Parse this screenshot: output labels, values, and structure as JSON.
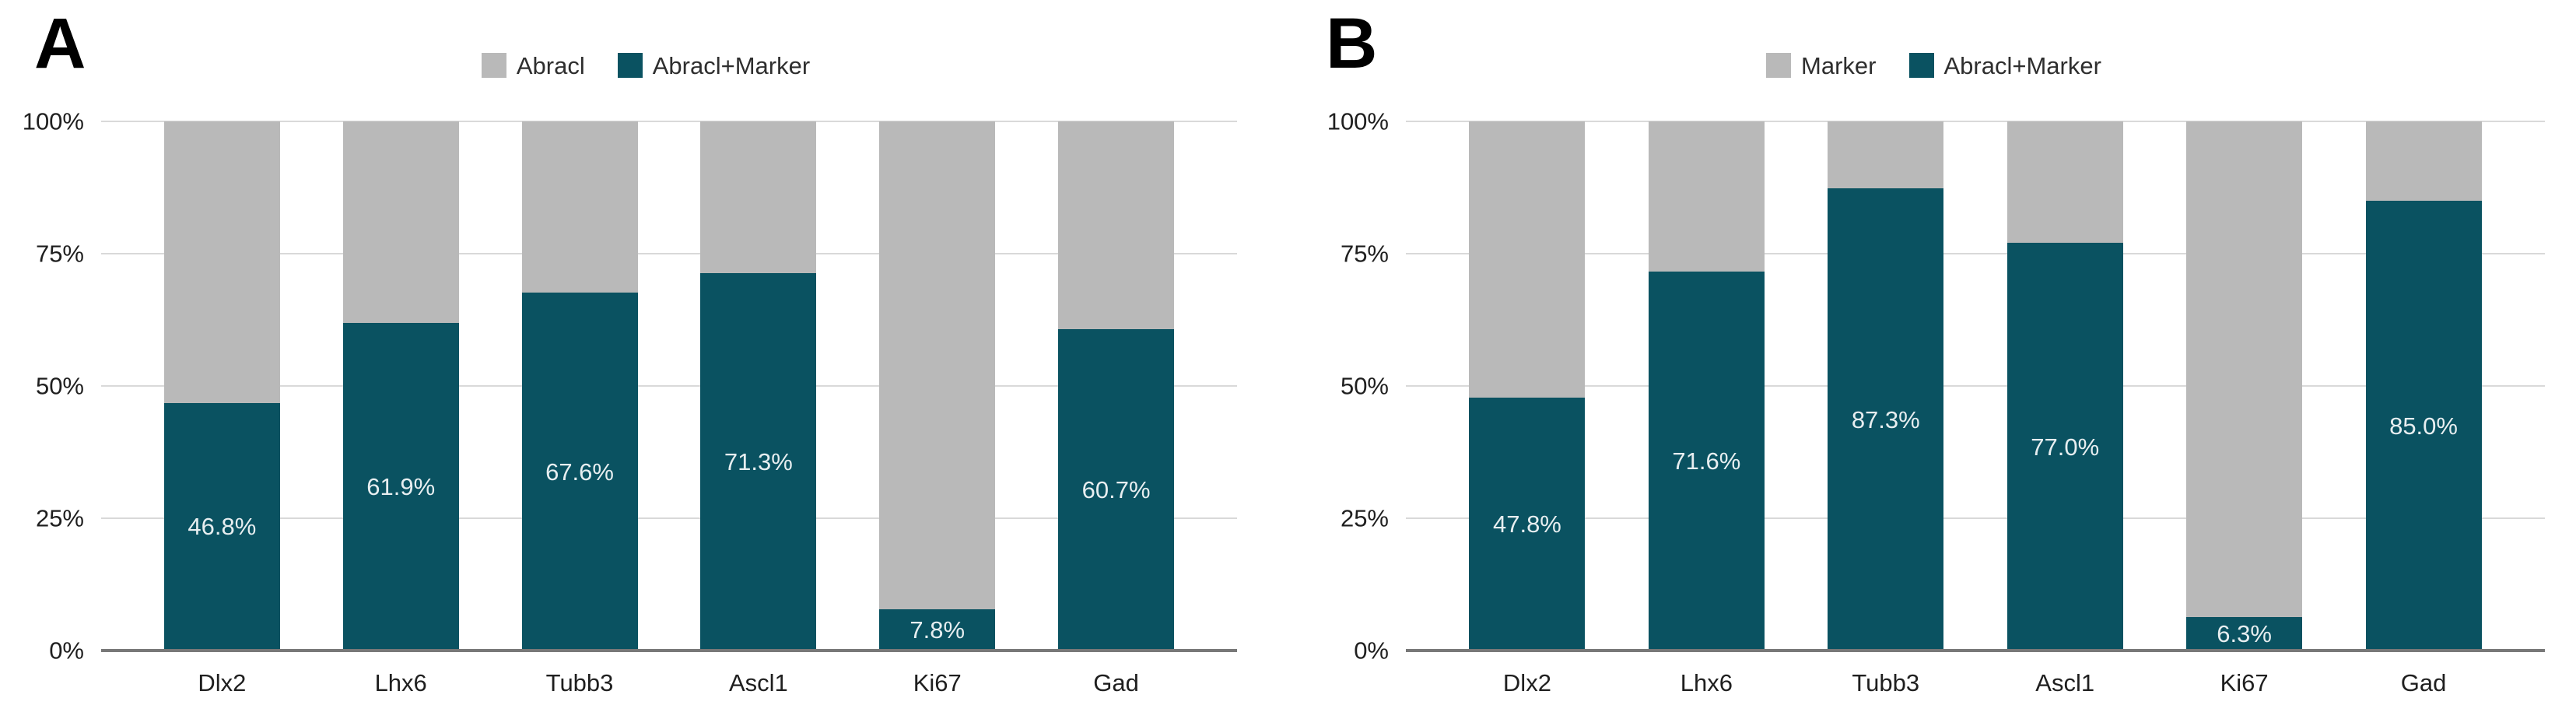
{
  "figure": {
    "background": "#ffffff"
  },
  "colors": {
    "bar_teal": "#0a5261",
    "bar_gray": "#b9b9b9",
    "gridline": "#d9d9d9",
    "axis_line": "#787878",
    "tick_text": "#1f1f1f",
    "legend_text": "#2e2e2e",
    "value_label_text": "#e7eef0"
  },
  "chart_data": [
    {
      "type": "bar",
      "subtype": "stacked-100-percent",
      "panel_label": "A",
      "title": "",
      "xlabel": "",
      "ylabel": "",
      "ylim": [
        0,
        100
      ],
      "grid": true,
      "legend_position": "top-center",
      "y_tick_labels": [
        "100%",
        "75%",
        "50%",
        "25%",
        "0%"
      ],
      "y_tick_values": [
        100,
        75,
        50,
        25,
        0
      ],
      "categories": [
        "Dlx2",
        "Lhx6",
        "Tubb3",
        "Ascl1",
        "Ki67",
        "Gad"
      ],
      "series": [
        {
          "name": "Abracl",
          "color_key": "bar_gray",
          "values": [
            53.2,
            38.1,
            32.4,
            28.7,
            92.2,
            39.3
          ]
        },
        {
          "name": "Abracl+Marker",
          "color_key": "bar_teal",
          "values": [
            46.8,
            61.9,
            67.6,
            71.3,
            7.8,
            60.7
          ],
          "value_labels": [
            "46.8%",
            "61.9%",
            "67.6%",
            "71.3%",
            "7.8%",
            "60.7%"
          ]
        }
      ]
    },
    {
      "type": "bar",
      "subtype": "stacked-100-percent",
      "panel_label": "B",
      "title": "",
      "xlabel": "",
      "ylabel": "",
      "ylim": [
        0,
        100
      ],
      "grid": true,
      "legend_position": "top-center",
      "y_tick_labels": [
        "100%",
        "75%",
        "50%",
        "25%",
        "0%"
      ],
      "y_tick_values": [
        100,
        75,
        50,
        25,
        0
      ],
      "categories": [
        "Dlx2",
        "Lhx6",
        "Tubb3",
        "Ascl1",
        "Ki67",
        "Gad"
      ],
      "series": [
        {
          "name": "Marker",
          "color_key": "bar_gray",
          "values": [
            52.2,
            28.4,
            12.7,
            23.0,
            93.7,
            15.0
          ]
        },
        {
          "name": "Abracl+Marker",
          "color_key": "bar_teal",
          "values": [
            47.8,
            71.6,
            87.3,
            77.0,
            6.3,
            85.0
          ],
          "value_labels": [
            "47.8%",
            "71.6%",
            "87.3%",
            "77.0%",
            "6.3%",
            "85.0%"
          ]
        }
      ]
    }
  ]
}
